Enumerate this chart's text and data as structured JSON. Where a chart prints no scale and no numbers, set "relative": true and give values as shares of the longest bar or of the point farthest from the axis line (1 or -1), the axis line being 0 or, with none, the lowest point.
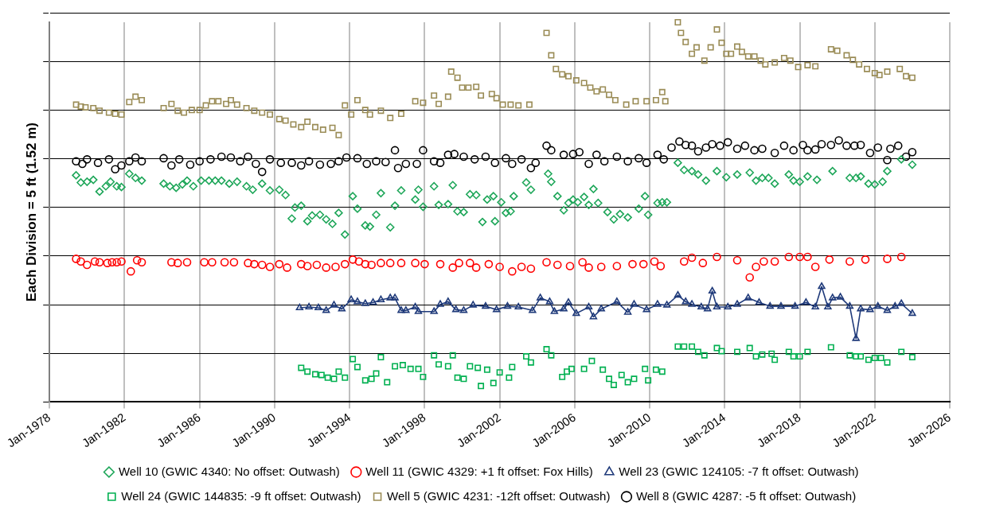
{
  "chart_data": {
    "type": "scatter",
    "relative": true,
    "ylabel": "Each Division = 5 ft (1.52 m)",
    "grid": true,
    "legend": "bottom",
    "xlim": [
      "1978-01",
      "2026-01"
    ],
    "xticks": [
      {
        "value": "1978-01",
        "label": "Jan-1978"
      },
      {
        "value": "1982-01",
        "label": "Jan-1982"
      },
      {
        "value": "1986-01",
        "label": "Jan-1986"
      },
      {
        "value": "1990-01",
        "label": "Jan-1990"
      },
      {
        "value": "1994-01",
        "label": "Jan-1994"
      },
      {
        "value": "1998-01",
        "label": "Jan-1998"
      },
      {
        "value": "2002-01",
        "label": "Jan-2002"
      },
      {
        "value": "2006-01",
        "label": "Jan-2006"
      },
      {
        "value": "2010-01",
        "label": "Jan-2010"
      },
      {
        "value": "2014-01",
        "label": "Jan-2014"
      },
      {
        "value": "2018-01",
        "label": "Jan-2018"
      },
      {
        "value": "2022-01",
        "label": "Jan-2022"
      },
      {
        "value": "2026-01",
        "label": "Jan-2026"
      }
    ],
    "series": [
      {
        "name": "Well 10 (GWIC 4340: No offset: Outwash)",
        "type": "scatter",
        "marker": "diamond",
        "color": "#1fa75a",
        "x": [
          "1979-06",
          "1979-09",
          "1980-01",
          "1980-05",
          "1980-09",
          "1981-01",
          "1981-04",
          "1981-08",
          "1981-11",
          "1982-04",
          "1982-08",
          "1982-12",
          "1984-02",
          "1984-06",
          "1984-10",
          "1985-02",
          "1985-05",
          "1985-09",
          "1986-02",
          "1986-07",
          "1986-11",
          "1987-03",
          "1987-08",
          "1988-01",
          "1988-07",
          "1988-11",
          "1989-05",
          "1989-10",
          "1990-04",
          "1990-08",
          "1990-12",
          "1991-02",
          "1991-06",
          "1991-10",
          "1992-01",
          "1992-06",
          "1992-10",
          "1993-02",
          "1993-06",
          "1993-10",
          "1994-03",
          "1994-06",
          "1994-11",
          "1995-02",
          "1995-06",
          "1995-09",
          "1996-03",
          "1996-06",
          "1996-10",
          "1997-07",
          "1997-09",
          "1997-12",
          "1998-07",
          "1998-10",
          "1999-04",
          "1999-07",
          "1999-10",
          "2000-02",
          "2000-06",
          "2000-10",
          "2001-02",
          "2001-05",
          "2001-09",
          "2001-10",
          "2002-02",
          "2002-05",
          "2002-08",
          "2002-10",
          "2003-06",
          "2003-09",
          "2004-08",
          "2004-10",
          "2005-02",
          "2005-06",
          "2005-09",
          "2005-12",
          "2006-03",
          "2006-07",
          "2006-10",
          "2007-01",
          "2007-04",
          "2007-10",
          "2008-02",
          "2008-06",
          "2008-11",
          "2009-06",
          "2009-10",
          "2009-12",
          "2010-06",
          "2010-09",
          "2010-12",
          "2011-07",
          "2011-11",
          "2012-04",
          "2012-08",
          "2013-01",
          "2013-08",
          "2014-02",
          "2014-09",
          "2015-05",
          "2015-09",
          "2016-01",
          "2016-05",
          "2016-09",
          "2017-06",
          "2017-09",
          "2018-01",
          "2018-06",
          "2018-12",
          "2019-10",
          "2020-09",
          "2021-01",
          "2021-04",
          "2021-09",
          "2022-01",
          "2022-06",
          "2022-09",
          "2023-06",
          "2024-01"
        ],
        "values": [
          0.597,
          0.578,
          0.58,
          0.585,
          0.554,
          0.568,
          0.58,
          0.568,
          0.566,
          0.601,
          0.59,
          0.583,
          0.575,
          0.568,
          0.564,
          0.573,
          0.583,
          0.568,
          0.583,
          0.583,
          0.583,
          0.583,
          0.575,
          0.58,
          0.568,
          0.559,
          0.575,
          0.557,
          0.559,
          0.545,
          0.483,
          0.512,
          0.517,
          0.476,
          0.491,
          0.493,
          0.481,
          0.469,
          0.498,
          0.441,
          0.542,
          0.509,
          0.465,
          0.462,
          0.493,
          0.55,
          0.46,
          0.517,
          0.557,
          0.533,
          0.559,
          0.514,
          0.568,
          0.519,
          0.521,
          0.571,
          0.502,
          0.5,
          0.547,
          0.545,
          0.474,
          0.533,
          0.542,
          0.476,
          0.526,
          0.498,
          0.502,
          0.542,
          0.578,
          0.559,
          0.601,
          0.58,
          0.542,
          0.505,
          0.524,
          0.533,
          0.526,
          0.54,
          0.519,
          0.561,
          0.524,
          0.5,
          0.481,
          0.495,
          0.486,
          0.509,
          0.542,
          0.493,
          0.524,
          0.526,
          0.526,
          0.63,
          0.611,
          0.608,
          0.599,
          0.583,
          0.608,
          0.592,
          0.599,
          0.604,
          0.583,
          0.59,
          0.59,
          0.575,
          0.599,
          0.583,
          0.58,
          0.594,
          0.585,
          0.608,
          0.59,
          0.59,
          0.594,
          0.575,
          0.573,
          0.58,
          0.608,
          0.639,
          0.625
        ]
      },
      {
        "name": "Well 11 (GWIC 4329: +1 ft offset: Fox Hills)",
        "type": "scatter",
        "marker": "circle",
        "color": "#ff0000",
        "x": [
          "1979-06",
          "1979-09",
          "1980-01",
          "1980-06",
          "1980-09",
          "1981-02",
          "1981-05",
          "1981-08",
          "1981-11",
          "1982-05",
          "1982-09",
          "1982-12",
          "1984-07",
          "1984-11",
          "1985-05",
          "1986-04",
          "1986-09",
          "1987-05",
          "1987-11",
          "1988-08",
          "1988-12",
          "1989-05",
          "1989-10",
          "1990-04",
          "1990-09",
          "1991-06",
          "1991-10",
          "1992-04",
          "1992-10",
          "1993-04",
          "1993-10",
          "1994-03",
          "1994-07",
          "1994-11",
          "1995-03",
          "1995-09",
          "1996-03",
          "1996-10",
          "1997-07",
          "1998-01",
          "1998-11",
          "1999-07",
          "1999-11",
          "2000-06",
          "2000-10",
          "2001-06",
          "2002-01",
          "2002-09",
          "2003-03",
          "2003-09",
          "2004-07",
          "2005-02",
          "2005-10",
          "2006-06",
          "2006-10",
          "2007-06",
          "2008-04",
          "2009-02",
          "2009-09",
          "2010-04",
          "2010-08",
          "2011-11",
          "2012-04",
          "2012-11",
          "2013-08",
          "2014-09",
          "2015-05",
          "2015-09",
          "2016-02",
          "2016-09",
          "2017-06",
          "2018-01",
          "2018-06",
          "2018-11",
          "2019-08",
          "2020-09",
          "2021-07",
          "2022-09",
          "2023-06"
        ],
        "values": [
          0.377,
          0.37,
          0.361,
          0.37,
          0.368,
          0.366,
          0.368,
          0.368,
          0.37,
          0.344,
          0.373,
          0.368,
          0.368,
          0.366,
          0.368,
          0.368,
          0.368,
          0.368,
          0.368,
          0.366,
          0.363,
          0.361,
          0.356,
          0.363,
          0.354,
          0.363,
          0.358,
          0.361,
          0.354,
          0.356,
          0.363,
          0.375,
          0.37,
          0.363,
          0.361,
          0.366,
          0.366,
          0.366,
          0.366,
          0.363,
          0.363,
          0.354,
          0.366,
          0.366,
          0.354,
          0.363,
          0.356,
          0.344,
          0.356,
          0.351,
          0.368,
          0.361,
          0.358,
          0.368,
          0.354,
          0.356,
          0.358,
          0.363,
          0.363,
          0.37,
          0.358,
          0.37,
          0.38,
          0.366,
          0.382,
          0.373,
          0.328,
          0.356,
          0.37,
          0.37,
          0.382,
          0.382,
          0.382,
          0.356,
          0.375,
          0.37,
          0.375,
          0.377,
          0.382
        ]
      },
      {
        "name": "Well 23 (GWIC 124105: -7 ft offset: Outwash)",
        "type": "line",
        "marker": "triangle",
        "color": "#1f3a7a",
        "x": [
          "1991-05",
          "1991-11",
          "1992-05",
          "1992-10",
          "1993-03",
          "1993-08",
          "1994-02",
          "1994-06",
          "1994-11",
          "1995-04",
          "1995-09",
          "1996-03",
          "1996-06",
          "1996-10",
          "1997-01",
          "1997-07",
          "1997-09",
          "1998-07",
          "1998-11",
          "1999-04",
          "1999-09",
          "2000-02",
          "2000-08",
          "2001-04",
          "2001-11",
          "2002-06",
          "2003-01",
          "2003-10",
          "2004-03",
          "2004-09",
          "2004-12",
          "2005-06",
          "2005-09",
          "2006-02",
          "2006-10",
          "2007-01",
          "2007-06",
          "2008-04",
          "2008-11",
          "2009-03",
          "2009-11",
          "2010-06",
          "2010-12",
          "2011-07",
          "2011-12",
          "2012-04",
          "2012-10",
          "2013-02",
          "2013-05",
          "2013-08",
          "2014-03",
          "2014-09",
          "2015-04",
          "2015-11",
          "2016-06",
          "2017-01",
          "2017-10",
          "2018-05",
          "2018-11",
          "2019-03",
          "2019-07",
          "2019-10",
          "2020-03",
          "2020-09",
          "2021-01",
          "2021-04",
          "2021-10",
          "2022-03",
          "2022-09",
          "2023-02",
          "2023-06",
          "2024-01"
        ],
        "values": [
          0.248,
          0.25,
          0.248,
          0.241,
          0.255,
          0.245,
          0.269,
          0.264,
          0.259,
          0.262,
          0.269,
          0.274,
          0.274,
          0.241,
          0.241,
          0.25,
          0.238,
          0.238,
          0.257,
          0.264,
          0.243,
          0.241,
          0.255,
          0.252,
          0.243,
          0.252,
          0.25,
          0.241,
          0.274,
          0.264,
          0.238,
          0.245,
          0.262,
          0.233,
          0.25,
          0.224,
          0.245,
          0.264,
          0.236,
          0.257,
          0.243,
          0.257,
          0.255,
          0.281,
          0.264,
          0.257,
          0.25,
          0.245,
          0.292,
          0.25,
          0.25,
          0.257,
          0.274,
          0.262,
          0.252,
          0.252,
          0.252,
          0.262,
          0.25,
          0.304,
          0.25,
          0.274,
          0.276,
          0.252,
          0.167,
          0.245,
          0.243,
          0.252,
          0.241,
          0.252,
          0.259,
          0.233
        ]
      },
      {
        "name": "Well 24 (GWIC 144835: -9 ft offset: Outwash)",
        "type": "scatter",
        "marker": "square",
        "color": "#00b050",
        "x": [
          "1991-06",
          "1991-10",
          "1992-03",
          "1992-07",
          "1992-11",
          "1993-03",
          "1993-06",
          "1993-10",
          "1994-03",
          "1994-06",
          "1994-11",
          "1995-03",
          "1995-06",
          "1995-09",
          "1996-01",
          "1996-06",
          "1996-11",
          "1997-04",
          "1997-09",
          "1997-12",
          "1998-07",
          "1998-10",
          "1999-04",
          "1999-07",
          "1999-10",
          "2000-02",
          "2000-06",
          "2000-11",
          "2001-01",
          "2001-05",
          "2001-09",
          "2002-01",
          "2002-07",
          "2002-09",
          "2003-06",
          "2003-09",
          "2004-07",
          "2004-10",
          "2005-05",
          "2005-08",
          "2005-11",
          "2006-07",
          "2006-12",
          "2007-07",
          "2007-11",
          "2008-02",
          "2008-07",
          "2008-11",
          "2009-03",
          "2009-10",
          "2009-12",
          "2010-05",
          "2010-09",
          "2011-07",
          "2011-11",
          "2012-04",
          "2012-08",
          "2012-12",
          "2013-08",
          "2013-11",
          "2014-09",
          "2015-05",
          "2015-09",
          "2016-01",
          "2016-07",
          "2016-09",
          "2017-06",
          "2017-09",
          "2018-01",
          "2018-06",
          "2019-09",
          "2020-09",
          "2021-01",
          "2021-04",
          "2021-09",
          "2022-01",
          "2022-05",
          "2022-09",
          "2023-06",
          "2024-01"
        ],
        "values": [
          0.09,
          0.08,
          0.073,
          0.071,
          0.064,
          0.061,
          0.08,
          0.064,
          0.113,
          0.092,
          0.057,
          0.061,
          0.075,
          0.118,
          0.052,
          0.094,
          0.097,
          0.087,
          0.087,
          0.066,
          0.123,
          0.099,
          0.094,
          0.123,
          0.064,
          0.061,
          0.094,
          0.09,
          0.042,
          0.085,
          0.05,
          0.078,
          0.064,
          0.092,
          0.12,
          0.104,
          0.139,
          0.123,
          0.066,
          0.08,
          0.087,
          0.087,
          0.108,
          0.085,
          0.061,
          0.045,
          0.071,
          0.052,
          0.061,
          0.087,
          0.057,
          0.085,
          0.08,
          0.146,
          0.146,
          0.146,
          0.132,
          0.123,
          0.142,
          0.134,
          0.132,
          0.142,
          0.12,
          0.125,
          0.127,
          0.111,
          0.132,
          0.12,
          0.12,
          0.132,
          0.144,
          0.123,
          0.12,
          0.12,
          0.111,
          0.116,
          0.116,
          0.104,
          0.132,
          0.118
        ]
      },
      {
        "name": "Well 5 (GWIC 4231: -12ft offset: Outwash)",
        "type": "scatter",
        "marker": "square",
        "color": "#9a8c56",
        "x": [
          "1979-06",
          "1979-09",
          "1979-12",
          "1980-05",
          "1980-09",
          "1981-03",
          "1981-07",
          "1981-11",
          "1982-04",
          "1982-08",
          "1982-12",
          "1984-02",
          "1984-07",
          "1984-11",
          "1985-03",
          "1985-08",
          "1986-01",
          "1986-05",
          "1986-09",
          "1987-01",
          "1987-06",
          "1987-09",
          "1988-01",
          "1988-07",
          "1988-12",
          "1989-05",
          "1989-10",
          "1990-04",
          "1990-08",
          "1991-01",
          "1991-06",
          "1991-10",
          "1992-03",
          "1992-08",
          "1993-02",
          "1993-06",
          "1993-10",
          "1994-02",
          "1994-06",
          "1994-11",
          "1995-02",
          "1995-09",
          "1996-03",
          "1996-10",
          "1997-07",
          "1997-12",
          "1998-07",
          "1998-10",
          "1999-04",
          "1999-06",
          "1999-10",
          "2000-01",
          "2000-05",
          "2000-10",
          "2001-01",
          "2001-08",
          "2001-11",
          "2002-03",
          "2002-08",
          "2003-01",
          "2003-08",
          "2004-07",
          "2004-10",
          "2005-01",
          "2005-05",
          "2005-09",
          "2006-02",
          "2006-07",
          "2006-11",
          "2007-03",
          "2007-07",
          "2007-11",
          "2008-03",
          "2008-10",
          "2009-04",
          "2009-11",
          "2010-05",
          "2010-09",
          "2010-11",
          "2011-07",
          "2011-09",
          "2011-12",
          "2012-04",
          "2012-07",
          "2012-12",
          "2013-04",
          "2013-08",
          "2013-11",
          "2014-02",
          "2014-05",
          "2014-09",
          "2014-12",
          "2015-04",
          "2015-08",
          "2015-12",
          "2016-03",
          "2016-09",
          "2017-03",
          "2017-07",
          "2017-12",
          "2018-06",
          "2018-11",
          "2019-09",
          "2020-01",
          "2020-07",
          "2020-11",
          "2021-03",
          "2021-08",
          "2022-01",
          "2022-04",
          "2022-09",
          "2023-05",
          "2023-09",
          "2024-01"
        ],
        "values": [
          0.783,
          0.778,
          0.776,
          0.774,
          0.767,
          0.762,
          0.759,
          0.757,
          0.79,
          0.804,
          0.795,
          0.774,
          0.785,
          0.767,
          0.762,
          0.769,
          0.769,
          0.781,
          0.792,
          0.792,
          0.785,
          0.795,
          0.783,
          0.774,
          0.767,
          0.762,
          0.757,
          0.745,
          0.741,
          0.731,
          0.724,
          0.738,
          0.724,
          0.717,
          0.722,
          0.703,
          0.781,
          0.757,
          0.795,
          0.769,
          0.757,
          0.767,
          0.748,
          0.759,
          0.792,
          0.788,
          0.807,
          0.785,
          0.804,
          0.87,
          0.854,
          0.828,
          0.828,
          0.83,
          0.807,
          0.811,
          0.8,
          0.783,
          0.783,
          0.781,
          0.783,
          0.972,
          0.913,
          0.877,
          0.863,
          0.858,
          0.847,
          0.84,
          0.828,
          0.818,
          0.823,
          0.809,
          0.795,
          0.783,
          0.792,
          0.792,
          0.795,
          0.816,
          0.792,
          1,
          0.972,
          0.948,
          0.917,
          0.934,
          0.899,
          0.934,
          0.981,
          0.946,
          0.917,
          0.917,
          0.936,
          0.922,
          0.91,
          0.91,
          0.899,
          0.889,
          0.894,
          0.906,
          0.899,
          0.882,
          0.887,
          0.884,
          0.929,
          0.925,
          0.913,
          0.901,
          0.889,
          0.877,
          0.866,
          0.861,
          0.87,
          0.877,
          0.858,
          0.854
        ]
      },
      {
        "name": "Well 8 (GWIC 4287: -5 ft offset: Outwash)",
        "type": "scatter",
        "marker": "circle",
        "color": "#000000",
        "x": [
          "1979-06",
          "1979-10",
          "1980-01",
          "1980-08",
          "1981-03",
          "1981-07",
          "1981-11",
          "1982-04",
          "1982-08",
          "1982-12",
          "1984-02",
          "1984-07",
          "1984-12",
          "1985-07",
          "1986-01",
          "1986-08",
          "1987-03",
          "1987-09",
          "1988-03",
          "1988-08",
          "1989-01",
          "1989-05",
          "1989-10",
          "1990-05",
          "1990-12",
          "1991-06",
          "1991-11",
          "1992-06",
          "1993-01",
          "1993-06",
          "1993-11",
          "1994-06",
          "1994-12",
          "1995-06",
          "1995-12",
          "1996-06",
          "1996-08",
          "1997-01",
          "1997-08",
          "1997-12",
          "1998-07",
          "1998-11",
          "1999-04",
          "1999-08",
          "2000-02",
          "2000-09",
          "2001-04",
          "2001-10",
          "2002-05",
          "2002-09",
          "2003-03",
          "2003-09",
          "2003-12",
          "2004-07",
          "2004-10",
          "2005-06",
          "2005-12",
          "2006-04",
          "2006-10",
          "2007-03",
          "2007-08",
          "2008-04",
          "2008-11",
          "2009-06",
          "2009-11",
          "2010-06",
          "2010-10",
          "2011-03",
          "2011-08",
          "2011-12",
          "2012-04",
          "2012-08",
          "2013-01",
          "2013-05",
          "2013-10",
          "2014-03",
          "2014-09",
          "2015-02",
          "2015-08",
          "2016-01",
          "2016-09",
          "2017-03",
          "2017-09",
          "2018-03",
          "2018-06",
          "2018-11",
          "2019-03",
          "2019-09",
          "2020-02",
          "2020-07",
          "2020-12",
          "2021-04",
          "2021-10",
          "2022-03",
          "2022-09",
          "2022-11",
          "2023-04",
          "2023-09",
          "2024-01"
        ],
        "values": [
          0.634,
          0.627,
          0.639,
          0.63,
          0.639,
          0.613,
          0.623,
          0.634,
          0.644,
          0.634,
          0.642,
          0.623,
          0.639,
          0.625,
          0.634,
          0.639,
          0.646,
          0.644,
          0.634,
          0.646,
          0.627,
          0.606,
          0.639,
          0.63,
          0.63,
          0.623,
          0.634,
          0.625,
          0.627,
          0.634,
          0.644,
          0.642,
          0.627,
          0.634,
          0.632,
          0.663,
          0.616,
          0.627,
          0.627,
          0.663,
          0.634,
          0.63,
          0.651,
          0.653,
          0.646,
          0.639,
          0.646,
          0.63,
          0.642,
          0.627,
          0.639,
          0.616,
          0.63,
          0.675,
          0.663,
          0.651,
          0.653,
          0.658,
          0.627,
          0.651,
          0.634,
          0.646,
          0.634,
          0.642,
          0.63,
          0.651,
          0.639,
          0.67,
          0.686,
          0.677,
          0.675,
          0.66,
          0.67,
          0.679,
          0.675,
          0.684,
          0.667,
          0.675,
          0.663,
          0.667,
          0.656,
          0.675,
          0.663,
          0.677,
          0.663,
          0.665,
          0.679,
          0.677,
          0.689,
          0.675,
          0.675,
          0.677,
          0.656,
          0.67,
          0.637,
          0.667,
          0.675,
          0.646,
          0.658
        ]
      }
    ]
  }
}
